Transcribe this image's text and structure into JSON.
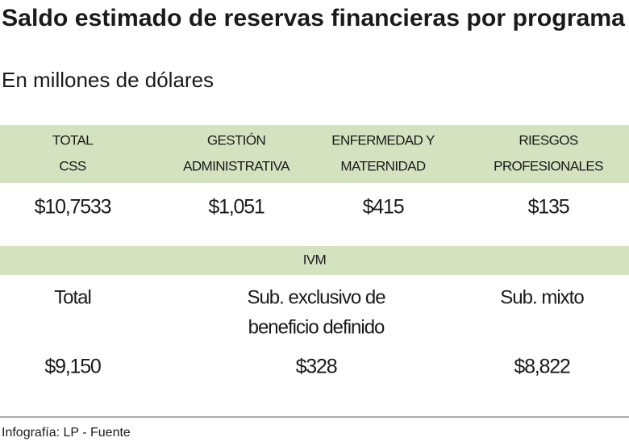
{
  "header": {
    "title": "Saldo estimado de reservas financieras por programa",
    "subtitle": "En millones de dólares"
  },
  "table1": {
    "headers": [
      [
        "TOTAL",
        "CSS"
      ],
      [
        "GESTIÓN",
        "ADMINISTRATIVA"
      ],
      [
        "ENFERMEDAD Y",
        "MATERNIDAD"
      ],
      [
        "RIESGOS",
        "PROFESIONALES"
      ]
    ],
    "values": [
      "$10,7533",
      "$1,051",
      "$415",
      "$135"
    ]
  },
  "table2": {
    "title": "IVM",
    "headers": [
      [
        "Total"
      ],
      [
        "Sub. exclusivo de",
        "beneficio definido"
      ],
      [
        "Sub. mixto"
      ]
    ],
    "values": [
      "$9,150",
      "$328",
      "$8,822"
    ]
  },
  "footer": {
    "source": "Infografía: LP - Fuente"
  }
}
